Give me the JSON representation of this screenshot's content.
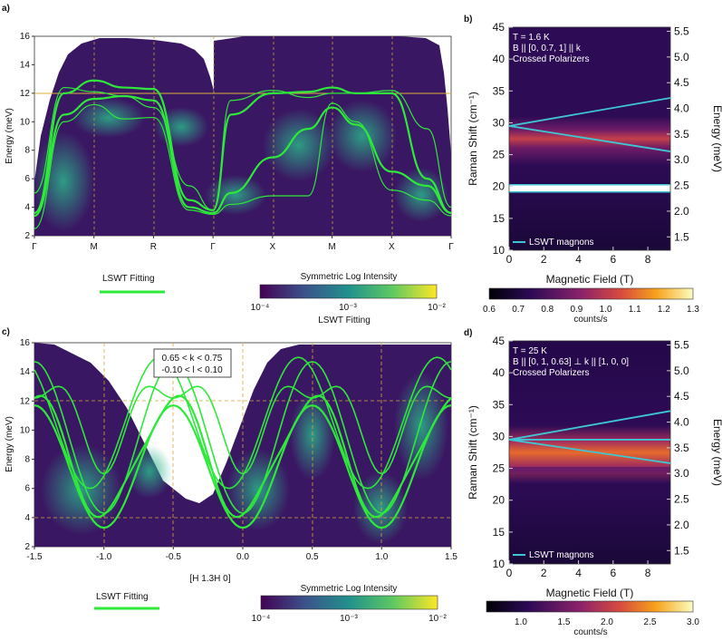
{
  "panels": {
    "a": {
      "letter": "a)",
      "ylabel": "Energy (meV)",
      "yticks": [
        "2",
        "4",
        "6",
        "8",
        "10",
        "12",
        "14",
        "16"
      ],
      "xticks": [
        "Γ",
        "M",
        "R",
        "Γ",
        "X",
        "M",
        "X",
        "Γ"
      ],
      "legend_label": "LSWT Fitting",
      "colorbar_title": "Symmetric Log Intensity",
      "colorbar_ticks": [
        "10⁻⁴",
        "10⁻³",
        "10⁻²"
      ],
      "colorbar_sublabel": "LSWT Fitting",
      "line_color": "#2ee83a"
    },
    "b": {
      "letter": "b)",
      "ylabel_left": "Raman Shift (cm⁻¹)",
      "ylabel_right": "Energy (meV)",
      "xlabel": "Magnetic Field (T)",
      "yticks_left": [
        "10",
        "15",
        "20",
        "25",
        "30",
        "35",
        "40",
        "45"
      ],
      "yticks_right": [
        "1.5",
        "2.0",
        "2.5",
        "3.0",
        "3.5",
        "4.0",
        "4.5",
        "5.0",
        "5.5"
      ],
      "xticks": [
        "0",
        "2",
        "4",
        "6",
        "8"
      ],
      "annotation_lines": [
        "T = 1.6 K",
        "B || [0, 0.7, 1] || k",
        "Crossed Polarizers"
      ],
      "legend": "LSWT magnons",
      "colorbar_ticks": [
        "0.6",
        "0.7",
        "0.8",
        "0.9",
        "1.0",
        "1.1",
        "1.2",
        "1.3"
      ],
      "colorbar_label": "counts/s",
      "line_color": "#3fc6d4"
    },
    "c": {
      "letter": "c)",
      "ylabel": "Energy (meV)",
      "xlabel": "[H 1.3H 0]",
      "yticks": [
        "2",
        "4",
        "6",
        "8",
        "10",
        "12",
        "14",
        "16"
      ],
      "xticks": [
        "-1.5",
        "-1.0",
        "-0.5",
        "0.0",
        "0.5",
        "1.0",
        "1.5"
      ],
      "box_lines": [
        "0.65 < k < 0.75",
        "-0.10 < l < 0.10"
      ],
      "legend_label": "LSWT Fitting",
      "colorbar_title": "Symmetric Log Intensity",
      "colorbar_ticks": [
        "10⁻⁴",
        "10⁻³",
        "10⁻²"
      ]
    },
    "d": {
      "letter": "d)",
      "ylabel_left": "Raman Shift (cm⁻¹)",
      "ylabel_right": "Energy (meV)",
      "xlabel": "Magnetic Field (T)",
      "yticks_left": [
        "10",
        "15",
        "20",
        "25",
        "30",
        "35",
        "40",
        "45"
      ],
      "yticks_right": [
        "1.5",
        "2.0",
        "2.5",
        "3.0",
        "3.5",
        "4.0",
        "4.5",
        "5.0",
        "5.5"
      ],
      "xticks": [
        "0",
        "2",
        "4",
        "6",
        "8"
      ],
      "annotation_lines": [
        "T = 25 K",
        "B || [0, 1, 0.63] ⊥ k || [1, 0, 0]",
        "Crossed Polarizers"
      ],
      "legend": "LSWT magnons",
      "colorbar_ticks": [
        "1.0",
        "1.5",
        "2.0",
        "2.5",
        "3.0"
      ],
      "colorbar_label": "counts/s"
    }
  },
  "chart_data": [
    {
      "type": "heatmap",
      "panel": "a",
      "ylabel": "Energy (meV)",
      "ylim": [
        2,
        16
      ],
      "x_path": [
        "Γ",
        "M",
        "R",
        "Γ",
        "X",
        "M",
        "X",
        "Γ"
      ],
      "lines": [
        {
          "values": [
            [
              0,
              3.4
            ],
            [
              0.5,
              10.5
            ],
            [
              1,
              11.6
            ],
            [
              1.5,
              11.8
            ],
            [
              2,
              11.5
            ],
            [
              2.6,
              4.0
            ],
            [
              3,
              3.6
            ],
            [
              3.3,
              5.0
            ],
            [
              4,
              7.5
            ],
            [
              4.6,
              9.5
            ],
            [
              5,
              11.0
            ],
            [
              5.4,
              9.8
            ],
            [
              6,
              6.5
            ],
            [
              6.6,
              5.5
            ],
            [
              7,
              3.6
            ]
          ]
        },
        {
          "values": [
            [
              0,
              2.5
            ],
            [
              0.5,
              10.0
            ],
            [
              1,
              11.2
            ],
            [
              1.5,
              10.2
            ],
            [
              2,
              10.3
            ],
            [
              2.6,
              3.8
            ],
            [
              3,
              3.5
            ],
            [
              3.3,
              4.2
            ],
            [
              4,
              4.8
            ],
            [
              4.6,
              4.8
            ],
            [
              5,
              11.3
            ],
            [
              5.4,
              10.0
            ],
            [
              6,
              5.2
            ],
            [
              6.6,
              4.5
            ],
            [
              7,
              3.4
            ]
          ]
        },
        {
          "values": [
            [
              0,
              3.6
            ],
            [
              0.5,
              12.0
            ],
            [
              1,
              12.9
            ],
            [
              1.5,
              12.4
            ],
            [
              2,
              12.3
            ],
            [
              2.6,
              4.5
            ],
            [
              3,
              3.8
            ],
            [
              3.3,
              10.5
            ],
            [
              4,
              12.0
            ],
            [
              4.6,
              12.1
            ],
            [
              5,
              12.4
            ],
            [
              5.4,
              12.0
            ],
            [
              6,
              12.0
            ],
            [
              6.6,
              6.0
            ],
            [
              7,
              3.6
            ]
          ]
        },
        {
          "values": [
            [
              0,
              5.0
            ],
            [
              0.5,
              12.4
            ],
            [
              1,
              12.1
            ],
            [
              1.5,
              11.8
            ],
            [
              2,
              11.0
            ],
            [
              2.6,
              5.5
            ],
            [
              3,
              3.8
            ],
            [
              3.3,
              11.5
            ],
            [
              4,
              12.2
            ],
            [
              4.6,
              11.7
            ],
            [
              5,
              12.0
            ],
            [
              5.4,
              12.0
            ],
            [
              6,
              12.2
            ],
            [
              6.6,
              9.5
            ],
            [
              7,
              4.0
            ]
          ]
        }
      ],
      "hline": 12.0
    },
    {
      "type": "heatmap",
      "panel": "b",
      "xlabel": "Magnetic Field (T)",
      "ylabel": "Raman Shift (cm⁻¹)",
      "xlim": [
        0,
        9.3
      ],
      "ylim": [
        10,
        45
      ],
      "y2lim": [
        1.24,
        5.58
      ],
      "colorbar_range": [
        0.6,
        1.3
      ],
      "series": [
        {
          "name": "LSWT magnons",
          "values": [
            [
              0,
              29.5
            ],
            [
              9.3,
              33.9
            ]
          ]
        },
        {
          "name": "LSWT magnons",
          "values": [
            [
              0,
              29.5
            ],
            [
              9.3,
              25.5
            ]
          ]
        }
      ]
    },
    {
      "type": "heatmap",
      "panel": "c",
      "xlabel": "[H 1.3H 0]",
      "ylabel": "Energy (meV)",
      "xlim": [
        -1.5,
        1.5
      ],
      "ylim": [
        2,
        16
      ]
    },
    {
      "type": "heatmap",
      "panel": "d",
      "xlabel": "Magnetic Field (T)",
      "ylabel": "Raman Shift (cm⁻¹)",
      "xlim": [
        0,
        9.3
      ],
      "ylim": [
        10,
        45
      ],
      "y2lim": [
        1.24,
        5.58
      ],
      "colorbar_range": [
        0.6,
        3.0
      ],
      "series": [
        {
          "name": "LSWT magnons",
          "values": [
            [
              0,
              29.5
            ],
            [
              9.3,
              34.0
            ]
          ]
        },
        {
          "name": "LSWT magnons",
          "values": [
            [
              0,
              29.5
            ],
            [
              9.3,
              29.5
            ]
          ]
        },
        {
          "name": "LSWT magnons",
          "values": [
            [
              0,
              29.5
            ],
            [
              9.3,
              25.8
            ]
          ]
        }
      ]
    }
  ]
}
